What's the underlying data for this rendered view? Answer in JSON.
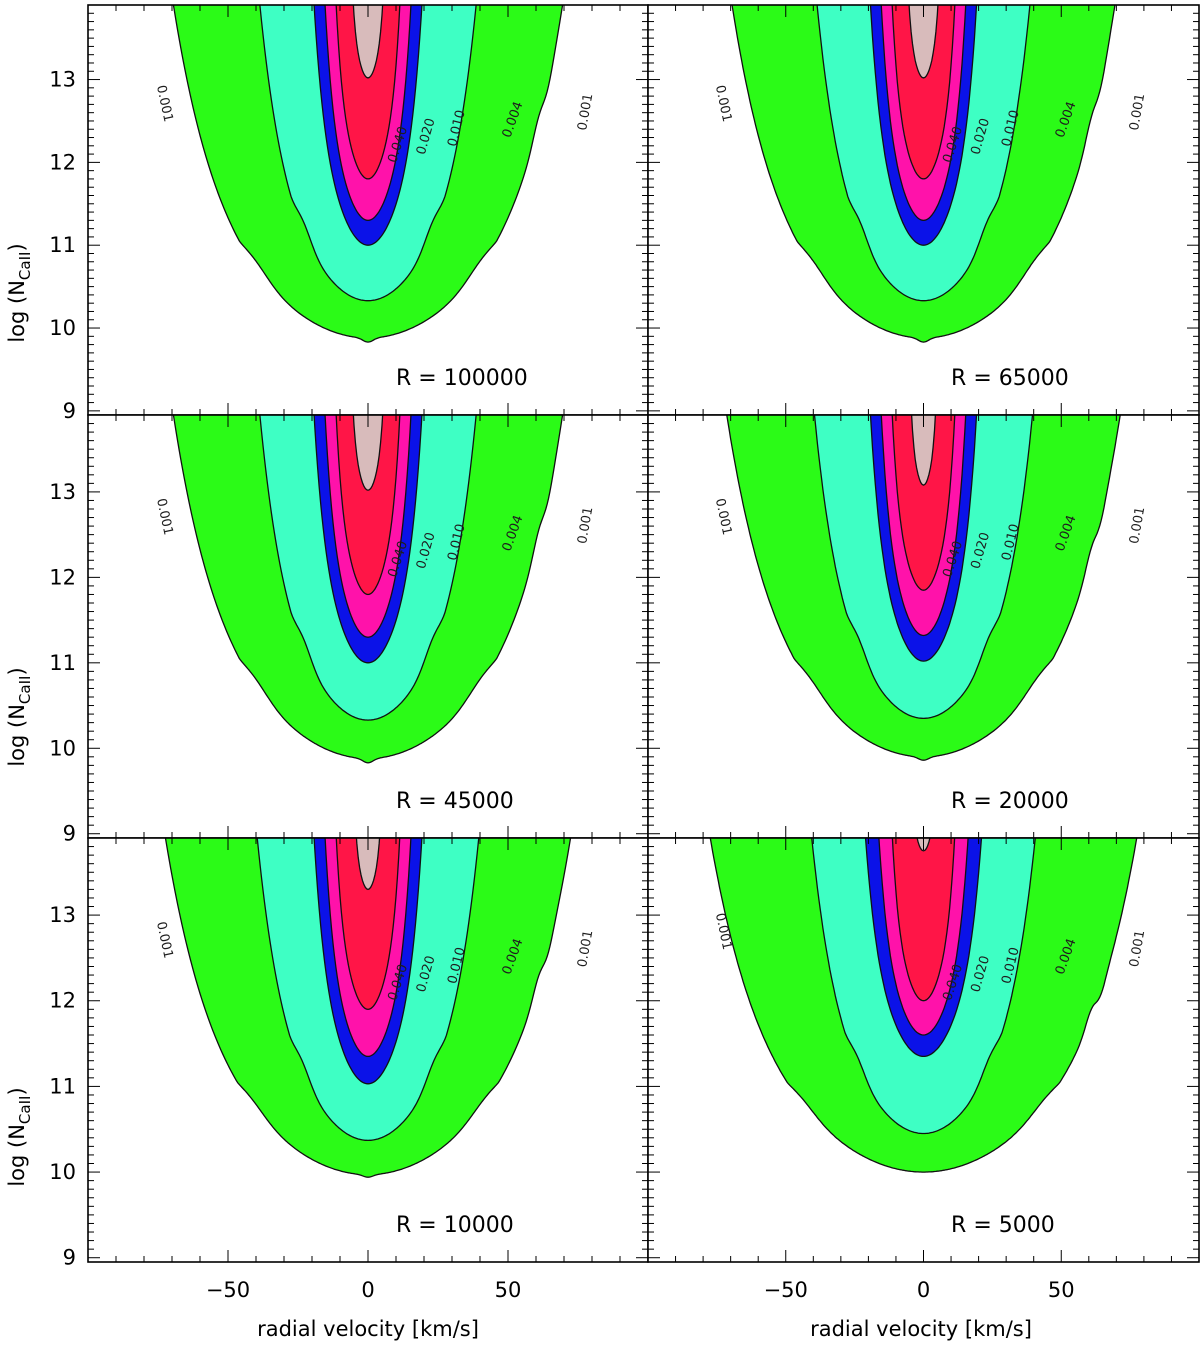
{
  "figure": {
    "xlabel": "radial velocity [km/s]",
    "ylabel_main": "log  (N",
    "ylabel_sub": "CaII",
    "ylabel_close": ")"
  },
  "colors": {
    "levels": [
      "#2bfb17",
      "#3effc4",
      "#0b12e8",
      "#ff12aa",
      "#ff1547",
      "#d8bbbb"
    ],
    "contour_line": "#111111",
    "frame": "#000000"
  },
  "chart_data": {
    "type": "heatmap",
    "layout": "3 rows x 2 columns, shared axes",
    "xlim": [
      -100,
      100
    ],
    "ylim": [
      8.95,
      13.9
    ],
    "xticks": [
      -50,
      0,
      50
    ],
    "yticks": [
      9,
      10,
      11,
      12,
      13
    ],
    "contour_levels": [
      0.001,
      0.004,
      0.01,
      0.02,
      0.04
    ],
    "contour_label_texts": [
      "0.001",
      "0.004",
      "0.010",
      "0.020",
      "0.040"
    ],
    "panels": [
      {
        "annotation": "R = 100000",
        "boundaries": {
          "c001": {
            "depth": 9.88,
            "step": 11.05,
            "hw": 72,
            "hwTop": 78,
            "dip": 0.05
          },
          "c004": {
            "depth": 10.33,
            "step": 11.6,
            "hw": 40,
            "hwTop": 52,
            "dip": 0
          },
          "c010": {
            "depth": 11.0,
            "hw": 20,
            "hwTop": 32,
            "dip": 0
          },
          "c020": {
            "depth": 11.3,
            "hw": 16,
            "hwTop": 26,
            "dip": 0
          },
          "c040": {
            "depth": 11.8,
            "hw": 12,
            "hwTop": 20,
            "dip": 0
          },
          "core": {
            "depth": 13.02,
            "hw": 6,
            "hwTop": 9,
            "dip": 0
          }
        }
      },
      {
        "annotation": "R = 65000",
        "boundaries": {
          "c001": {
            "depth": 9.88,
            "step": 11.05,
            "hw": 72,
            "hwTop": 78,
            "dip": 0.05
          },
          "c004": {
            "depth": 10.33,
            "step": 11.6,
            "hw": 40,
            "hwTop": 52,
            "dip": 0
          },
          "c010": {
            "depth": 11.0,
            "hw": 20,
            "hwTop": 32,
            "dip": 0
          },
          "c020": {
            "depth": 11.3,
            "hw": 16,
            "hwTop": 26,
            "dip": 0
          },
          "c040": {
            "depth": 11.8,
            "hw": 12,
            "hwTop": 20,
            "dip": 0
          },
          "core": {
            "depth": 13.02,
            "hw": 6,
            "hwTop": 9,
            "dip": 0
          }
        }
      },
      {
        "annotation": "R = 45000",
        "boundaries": {
          "c001": {
            "depth": 9.88,
            "step": 11.05,
            "hw": 72,
            "hwTop": 78,
            "dip": 0.05
          },
          "c004": {
            "depth": 10.33,
            "step": 11.6,
            "hw": 40,
            "hwTop": 52,
            "dip": 0
          },
          "c010": {
            "depth": 11.0,
            "hw": 20,
            "hwTop": 32,
            "dip": 0
          },
          "c020": {
            "depth": 11.3,
            "hw": 16,
            "hwTop": 26,
            "dip": 0
          },
          "c040": {
            "depth": 11.8,
            "hw": 12,
            "hwTop": 20,
            "dip": 0
          },
          "core": {
            "depth": 13.02,
            "hw": 6,
            "hwTop": 9,
            "dip": 0
          }
        }
      },
      {
        "annotation": "R = 20000",
        "boundaries": {
          "c001": {
            "depth": 9.9,
            "step": 11.05,
            "hw": 74,
            "hwTop": 80,
            "dip": 0.04
          },
          "c004": {
            "depth": 10.35,
            "step": 11.6,
            "hw": 41,
            "hwTop": 53,
            "dip": 0
          },
          "c010": {
            "depth": 11.02,
            "hw": 20,
            "hwTop": 32,
            "dip": 0
          },
          "c020": {
            "depth": 11.32,
            "hw": 16,
            "hwTop": 26,
            "dip": 0
          },
          "c040": {
            "depth": 11.85,
            "hw": 12,
            "hwTop": 20,
            "dip": 0
          },
          "core": {
            "depth": 13.08,
            "hw": 5,
            "hwTop": 8,
            "dip": 0
          }
        }
      },
      {
        "annotation": "R = 10000",
        "boundaries": {
          "c001": {
            "depth": 9.97,
            "step": 11.05,
            "hw": 75,
            "hwTop": 82,
            "dip": 0.03
          },
          "c004": {
            "depth": 10.37,
            "step": 11.6,
            "hw": 41,
            "hwTop": 53,
            "dip": 0
          },
          "c010": {
            "depth": 11.03,
            "hw": 20,
            "hwTop": 32,
            "dip": 0
          },
          "c020": {
            "depth": 11.35,
            "hw": 16,
            "hwTop": 26,
            "dip": 0
          },
          "c040": {
            "depth": 11.9,
            "hw": 12,
            "hwTop": 20,
            "dip": 0
          },
          "core": {
            "depth": 13.3,
            "hw": 5,
            "hwTop": 8,
            "dip": 0
          }
        }
      },
      {
        "annotation": "R = 5000",
        "boundaries": {
          "c001": {
            "depth": 10.0,
            "step": 11.05,
            "hw": 80,
            "hwTop": 100,
            "dip": 0
          },
          "c004": {
            "depth": 10.45,
            "step": 11.65,
            "hw": 42,
            "hwTop": 58,
            "dip": 0
          },
          "c010": {
            "depth": 11.35,
            "hw": 22,
            "hwTop": 34,
            "dip": 0
          },
          "c020": {
            "depth": 11.6,
            "hw": 17,
            "hwTop": 27,
            "dip": 0
          },
          "c040": {
            "depth": 12.0,
            "hw": 12,
            "hwTop": 20,
            "dip": 0
          },
          "core": {
            "depth": 13.75,
            "hw": 4,
            "hwTop": 6,
            "dip": 0
          }
        }
      }
    ]
  }
}
